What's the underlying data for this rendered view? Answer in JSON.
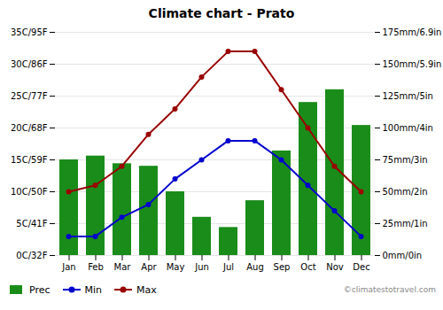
{
  "chart_data": {
    "type": "bar",
    "title": "Climate chart - Prato",
    "categories": [
      "Jan",
      "Feb",
      "Mar",
      "Apr",
      "May",
      "Jun",
      "Jul",
      "Aug",
      "Sep",
      "Oct",
      "Nov",
      "Dec"
    ],
    "series": [
      {
        "name": "Prec",
        "type": "bar",
        "axis": "y2",
        "color": "#1a8c1a",
        "values": [
          75,
          78,
          72,
          70,
          50,
          30,
          22,
          43,
          82,
          120,
          130,
          102
        ]
      },
      {
        "name": "Min",
        "type": "line",
        "color": "#0000cc",
        "marker": "circle",
        "values": [
          3,
          3,
          6,
          8,
          12,
          15,
          18,
          18,
          15,
          11,
          7,
          3
        ]
      },
      {
        "name": "Max",
        "type": "line",
        "color": "#990000",
        "marker": "circle",
        "values": [
          10,
          11,
          14,
          19,
          23,
          28,
          32,
          32,
          26,
          20,
          14,
          10
        ]
      }
    ],
    "ylim": [
      0,
      35
    ],
    "yticks": [
      {
        "value": 0,
        "label": "0C/32F"
      },
      {
        "value": 5,
        "label": "5C/41F"
      },
      {
        "value": 10,
        "label": "10C/50F"
      },
      {
        "value": 15,
        "label": "15C/59F"
      },
      {
        "value": 20,
        "label": "20C/68F"
      },
      {
        "value": 25,
        "label": "25C/77F"
      },
      {
        "value": 30,
        "label": "30C/86F"
      },
      {
        "value": 35,
        "label": "35C/95F"
      }
    ],
    "y2lim": [
      0,
      175
    ],
    "y2ticks": [
      {
        "value": 0,
        "label": "0mm/0in"
      },
      {
        "value": 25,
        "label": "25mm/1in"
      },
      {
        "value": 50,
        "label": "50mm/2in"
      },
      {
        "value": 75,
        "label": "75mm/3in"
      },
      {
        "value": 100,
        "label": "100mm/4in"
      },
      {
        "value": 125,
        "label": "125mm/5in"
      },
      {
        "value": 150,
        "label": "150mm/5.9in"
      },
      {
        "value": 175,
        "label": "175mm/6.9in"
      }
    ],
    "grid": true,
    "legend": "lower left",
    "annotations": [
      "©climatestotravel.com"
    ]
  }
}
